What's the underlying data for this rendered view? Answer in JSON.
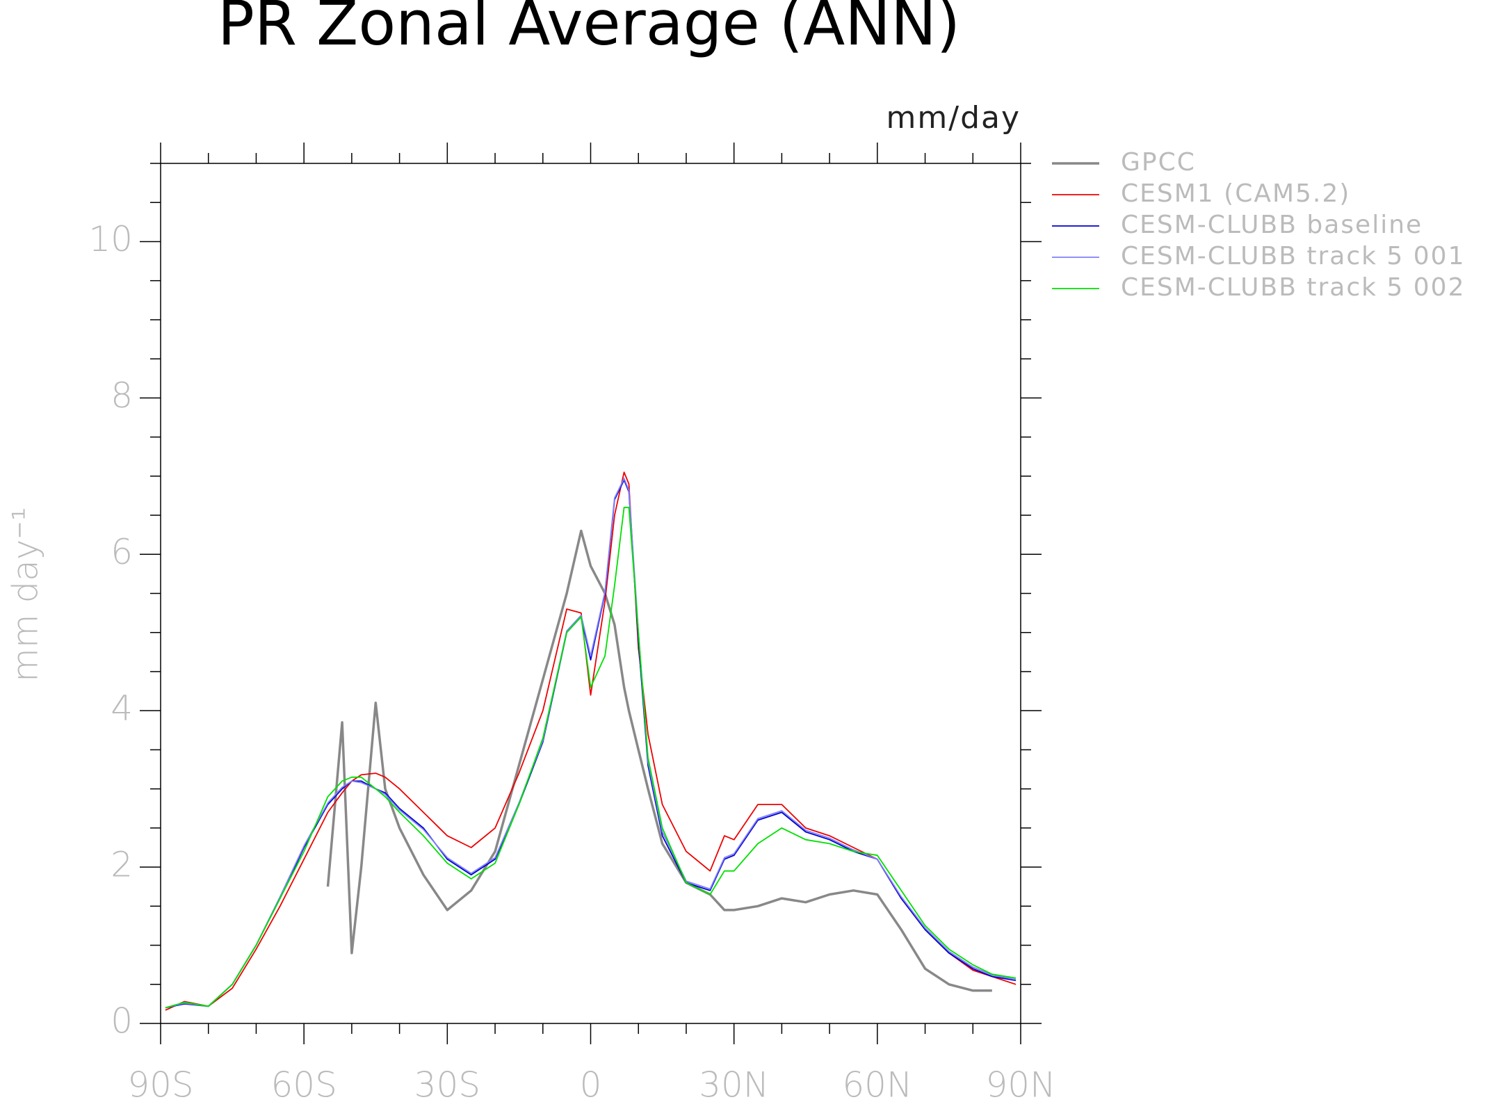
{
  "chart_data": {
    "type": "line",
    "title": "PR Zonal Average (ANN)",
    "unit_label": "mm/day",
    "y_label": "mm day⁻¹",
    "x": [
      -89,
      -85,
      -80,
      -75,
      -70,
      -65,
      -60,
      -55,
      -52,
      -50,
      -48,
      -45,
      -43,
      -40,
      -35,
      -30,
      -25,
      -20,
      -15,
      -10,
      -5,
      -2,
      0,
      3,
      5,
      7,
      8,
      10,
      12,
      15,
      20,
      25,
      28,
      30,
      35,
      40,
      45,
      50,
      55,
      60,
      65,
      70,
      75,
      80,
      84,
      89
    ],
    "series": [
      {
        "name": "GPCC",
        "color": "#888888",
        "width": 3.5,
        "values": [
          null,
          null,
          null,
          null,
          null,
          null,
          null,
          1.75,
          3.85,
          0.9,
          2.0,
          4.1,
          3.0,
          2.5,
          1.9,
          1.45,
          1.7,
          2.2,
          3.3,
          4.4,
          5.5,
          6.3,
          5.85,
          5.5,
          5.1,
          4.3,
          4.0,
          3.5,
          3.0,
          2.3,
          1.8,
          1.65,
          1.45,
          1.45,
          1.5,
          1.6,
          1.55,
          1.65,
          1.7,
          1.65,
          1.2,
          0.7,
          0.5,
          0.42,
          0.42,
          null
        ]
      },
      {
        "name": "CESM1 (CAM5.2)",
        "color": "#ee0000",
        "width": 1.8,
        "values": [
          0.17,
          0.28,
          0.22,
          0.45,
          0.95,
          1.5,
          2.1,
          2.7,
          2.95,
          3.1,
          3.18,
          3.2,
          3.15,
          3.0,
          2.7,
          2.4,
          2.25,
          2.5,
          3.2,
          4.0,
          5.3,
          5.25,
          4.2,
          5.4,
          6.5,
          7.05,
          6.9,
          4.8,
          3.7,
          2.8,
          2.2,
          1.95,
          2.4,
          2.35,
          2.8,
          2.8,
          2.5,
          2.4,
          2.25,
          2.1,
          1.6,
          1.2,
          0.9,
          0.68,
          0.6,
          0.5
        ]
      },
      {
        "name": "CESM-CLUBB baseline",
        "color": "#0000cc",
        "width": 1.8,
        "values": [
          0.2,
          0.25,
          0.22,
          0.5,
          1.0,
          1.6,
          2.25,
          2.8,
          3.0,
          3.1,
          3.1,
          3.0,
          2.95,
          2.75,
          2.5,
          2.1,
          1.9,
          2.1,
          2.8,
          3.6,
          5.0,
          5.2,
          4.65,
          5.5,
          6.7,
          6.95,
          6.8,
          4.9,
          3.3,
          2.4,
          1.8,
          1.7,
          2.1,
          2.15,
          2.6,
          2.7,
          2.45,
          2.35,
          2.2,
          2.1,
          1.6,
          1.2,
          0.9,
          0.7,
          0.6,
          0.55
        ]
      },
      {
        "name": "CESM-CLUBB track 5 001",
        "color": "#7f7fff",
        "width": 1.8,
        "values": [
          0.2,
          0.26,
          0.22,
          0.5,
          1.0,
          1.62,
          2.27,
          2.82,
          3.02,
          3.1,
          3.08,
          3.0,
          2.93,
          2.73,
          2.48,
          2.12,
          1.92,
          2.12,
          2.82,
          3.62,
          5.02,
          5.22,
          4.7,
          5.52,
          6.72,
          6.97,
          6.82,
          5.0,
          3.35,
          2.45,
          1.82,
          1.72,
          2.12,
          2.17,
          2.62,
          2.72,
          2.47,
          2.37,
          2.22,
          2.1,
          1.62,
          1.22,
          0.92,
          0.72,
          0.62,
          0.56
        ]
      },
      {
        "name": "CESM-CLUBB track 5 002",
        "color": "#00e000",
        "width": 1.8,
        "values": [
          0.2,
          0.27,
          0.22,
          0.5,
          1.0,
          1.6,
          2.2,
          2.9,
          3.1,
          3.15,
          3.15,
          3.0,
          2.9,
          2.7,
          2.4,
          2.05,
          1.85,
          2.05,
          2.8,
          3.65,
          5.0,
          5.2,
          4.3,
          4.7,
          5.6,
          6.6,
          6.6,
          5.0,
          3.4,
          2.5,
          1.8,
          1.65,
          1.95,
          1.95,
          2.3,
          2.5,
          2.35,
          2.3,
          2.2,
          2.15,
          1.7,
          1.25,
          0.95,
          0.75,
          0.63,
          0.58
        ]
      }
    ],
    "xlim": [
      -90,
      90
    ],
    "xticks": [
      {
        "value": -90,
        "label": "90S"
      },
      {
        "value": -60,
        "label": "60S"
      },
      {
        "value": -30,
        "label": "30S"
      },
      0,
      {
        "value": 30,
        "label": "30N"
      },
      {
        "value": 60,
        "label": "60N"
      },
      {
        "value": 90,
        "label": "90N"
      }
    ],
    "xminorticks": [
      -80,
      -70,
      -50,
      -40,
      -20,
      -10,
      10,
      20,
      40,
      50,
      70,
      80
    ],
    "ylim": [
      0,
      11
    ],
    "yticks": [
      0,
      2,
      4,
      6,
      8,
      10
    ],
    "yminorticks": [
      0.5,
      1,
      1.5,
      2.5,
      3,
      3.5,
      4.5,
      5,
      5.5,
      6.5,
      7,
      7.5,
      8.5,
      9,
      9.5,
      10.5,
      11
    ],
    "legend": "right"
  }
}
